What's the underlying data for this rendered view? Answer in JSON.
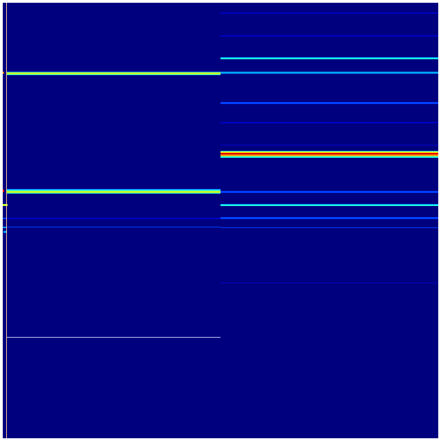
{
  "colormap": {
    "background": "#00007f",
    "dark_blue": "#0000c8",
    "blue": "#0040ff",
    "light_blue": "#00a0ff",
    "cyan": "#20ffe0",
    "green_yellow": "#c0ff30",
    "yellow": "#ffe000",
    "orange": "#ff8000",
    "red": "#e00000",
    "axis_line": "#ffc890",
    "border": "#ffffff"
  }
}
